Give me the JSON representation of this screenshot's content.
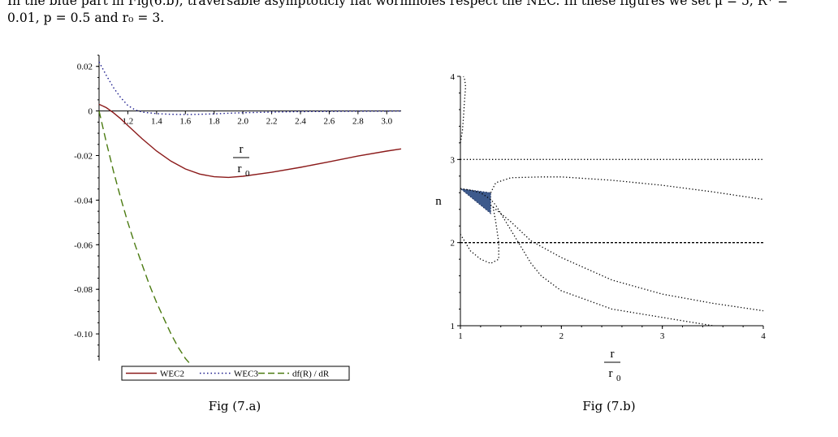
{
  "text": {
    "line1": "In the blue part in Fig(6.b), traversable asymptoticly flat wormholes respect the NEC. In these figures we set μ = 5, R* =",
    "line2": "0.01, p = 0.5 and r₀ = 3."
  },
  "chart_data": [
    {
      "type": "line",
      "caption": "Fig (7.a)",
      "xlabel": {
        "numerator": "r",
        "denominator": "r",
        "denominator_sub": "0"
      },
      "ylabel": "",
      "xlim": [
        1.0,
        3.1
      ],
      "ylim": [
        -0.112,
        0.025
      ],
      "x_ticks": [
        "1.2",
        "1.4",
        "1.6",
        "1.8",
        "2.0",
        "2.2",
        "2.4",
        "2.6",
        "2.8",
        "3.0"
      ],
      "y_ticks": [
        "0.02",
        "0",
        "-0.02",
        "-0.04",
        "-0.06",
        "-0.08",
        "-0.10"
      ],
      "legend_position": "bottom",
      "series": [
        {
          "name": "WEC2",
          "style": "solid",
          "color": "#8b1a1a",
          "x": [
            1.0,
            1.05,
            1.1,
            1.15,
            1.2,
            1.3,
            1.4,
            1.5,
            1.6,
            1.7,
            1.8,
            1.9,
            2.0,
            2.2,
            2.4,
            2.6,
            2.8,
            3.0,
            3.1
          ],
          "y": [
            0.003,
            0.0015,
            -0.0008,
            -0.0035,
            -0.0065,
            -0.0125,
            -0.018,
            -0.0225,
            -0.026,
            -0.0283,
            -0.0295,
            -0.0298,
            -0.0293,
            -0.0275,
            -0.0253,
            -0.0228,
            -0.0202,
            -0.018,
            -0.017
          ]
        },
        {
          "name": "WEC3",
          "style": "dotted",
          "color": "#1a1a8b",
          "x": [
            1.0,
            1.05,
            1.1,
            1.15,
            1.2,
            1.25,
            1.3,
            1.4,
            1.5,
            1.6,
            1.7,
            1.8,
            1.9,
            2.0,
            2.2,
            2.4,
            2.6,
            2.8,
            3.0,
            3.1
          ],
          "y": [
            0.022,
            0.016,
            0.0105,
            0.006,
            0.0025,
            0.0005,
            -0.0005,
            -0.0012,
            -0.0015,
            -0.0016,
            -0.0015,
            -0.0013,
            -0.001,
            -0.0008,
            -0.0005,
            -0.0003,
            -0.0002,
            -0.0001,
            -0.0001,
            0.0
          ]
        },
        {
          "name": "df(R) / dR",
          "style": "dashed",
          "color": "#4a7a10",
          "x": [
            1.0,
            1.05,
            1.1,
            1.15,
            1.2,
            1.25,
            1.3,
            1.35,
            1.4,
            1.45,
            1.5,
            1.55,
            1.6,
            1.64
          ],
          "y": [
            0.0,
            -0.014,
            -0.027,
            -0.039,
            -0.05,
            -0.06,
            -0.069,
            -0.078,
            -0.086,
            -0.093,
            -0.1,
            -0.106,
            -0.111,
            -0.114
          ]
        }
      ]
    },
    {
      "type": "line",
      "caption": "Fig (7.b)",
      "xlabel": {
        "numerator": "r",
        "denominator": "r",
        "denominator_sub": "0"
      },
      "ylabel": "n",
      "xlim": [
        1,
        4
      ],
      "ylim": [
        1,
        4
      ],
      "x_ticks": [
        "1",
        "2",
        "3",
        "4"
      ],
      "y_ticks": [
        "1",
        "2",
        "3",
        "4"
      ],
      "fill_color": "#3d5a8c",
      "series": [
        {
          "name": "",
          "style": "dotted",
          "x": [
            1,
            4
          ],
          "y": [
            3,
            3
          ]
        },
        {
          "name": "",
          "style": "dashed",
          "x": [
            1,
            4
          ],
          "y": [
            2,
            2
          ]
        },
        {
          "name": "",
          "style": "dotted",
          "x": [
            1.0,
            1.02,
            1.03,
            1.04,
            1.05,
            1.05,
            1.04,
            1.03
          ],
          "y": [
            3.2,
            3.35,
            3.5,
            3.7,
            3.85,
            3.9,
            3.97,
            4.0
          ]
        },
        {
          "name": "",
          "style": "dotted",
          "x": [
            1.0,
            1.1,
            1.2,
            1.3,
            1.35,
            1.4,
            1.45,
            1.5,
            1.55,
            1.6,
            1.7,
            1.8,
            2.0,
            2.5,
            3.0,
            3.5
          ],
          "y": [
            2.65,
            2.63,
            2.6,
            2.52,
            2.45,
            2.35,
            2.25,
            2.15,
            2.05,
            1.95,
            1.75,
            1.6,
            1.42,
            1.2,
            1.1,
            1.0
          ]
        },
        {
          "name": "",
          "style": "dotted",
          "x": [
            1.3,
            1.35,
            1.5,
            1.8,
            2.0,
            2.5,
            3.0,
            3.5,
            4.0
          ],
          "y": [
            2.6,
            2.72,
            2.78,
            2.79,
            2.79,
            2.75,
            2.69,
            2.61,
            2.52
          ]
        },
        {
          "name": "",
          "style": "dotted",
          "x": [
            1.3,
            1.5,
            1.7,
            2.0,
            2.5,
            3.0,
            3.5,
            4.0
          ],
          "y": [
            2.45,
            2.25,
            2.02,
            1.82,
            1.55,
            1.38,
            1.27,
            1.18
          ]
        },
        {
          "name": "",
          "style": "dotted",
          "x": [
            1.0,
            1.05,
            1.1,
            1.2,
            1.3,
            1.38,
            1.38,
            1.35,
            1.32
          ],
          "y": [
            2.1,
            2.0,
            1.9,
            1.8,
            1.75,
            1.8,
            2.0,
            2.25,
            2.45
          ]
        }
      ],
      "filled_region": {
        "x": [
          1.0,
          1.3,
          1.3,
          1.0
        ],
        "y": [
          2.65,
          2.6,
          2.35,
          2.65
        ]
      }
    }
  ]
}
